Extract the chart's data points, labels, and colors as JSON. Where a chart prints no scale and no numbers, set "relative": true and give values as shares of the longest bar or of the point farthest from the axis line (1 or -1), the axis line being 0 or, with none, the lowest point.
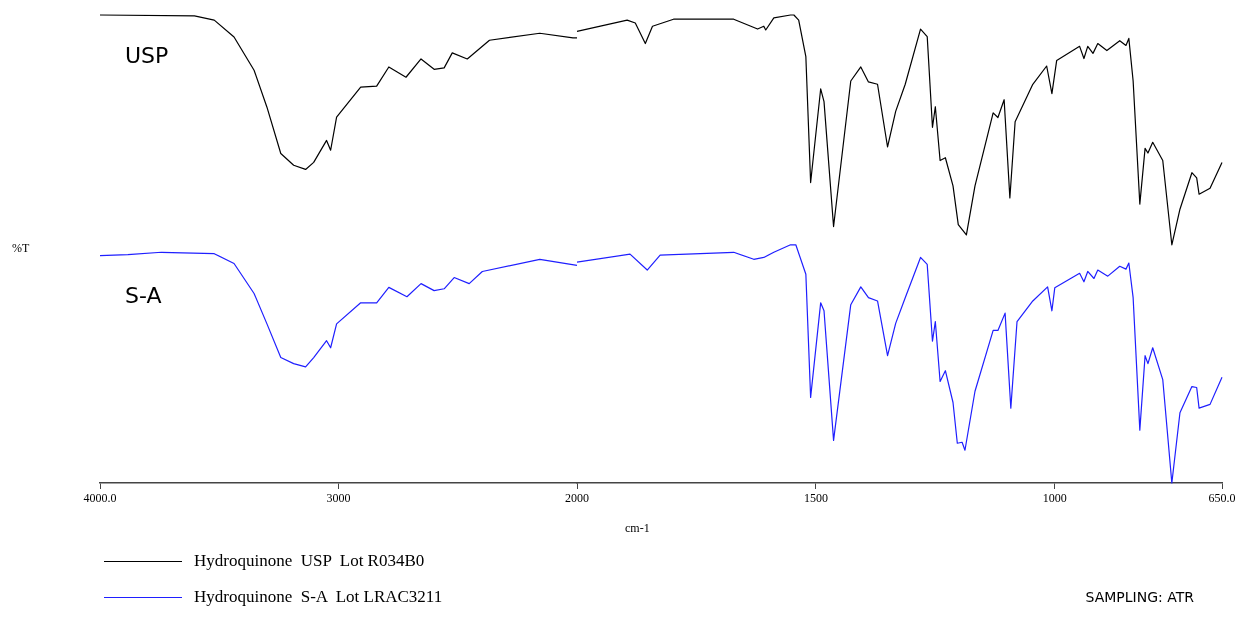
{
  "chart_data": [
    {
      "type": "line",
      "ylabel": "%T",
      "relative": true,
      "xlim": [
        4000,
        2000
      ],
      "xticks": [
        {
          "value": 4000,
          "label": "4000.0"
        },
        3000,
        2000
      ],
      "legend": "bottom left",
      "marker": "none",
      "line_style": "solid",
      "annotations": [
        "USP",
        "S-A",
        "SAMPLING: ATR"
      ],
      "series": [
        {
          "name": "Hydroquinone  USP  Lot R034B0",
          "color": "#000000",
          "x": [
            4000,
            3604,
            3521,
            3438,
            3354,
            3300,
            3242,
            3188,
            3138,
            3104,
            3050,
            3033,
            3008,
            2907,
            2840,
            2789,
            2717,
            2654,
            2599,
            2557,
            2523,
            2460,
            2367,
            2156,
            2017,
            2000
          ],
          "values": [
            1.0,
            0.998,
            0.989,
            0.953,
            0.882,
            0.803,
            0.704,
            0.679,
            0.67,
            0.685,
            0.732,
            0.711,
            0.782,
            0.846,
            0.848,
            0.889,
            0.867,
            0.906,
            0.884,
            0.887,
            0.919,
            0.906,
            0.946,
            0.961,
            0.951,
            0.951
          ]
        },
        {
          "name": "Hydroquinone  S-A  Lot LRAC3211",
          "color": "#1f1fff",
          "x": [
            4000,
            3883,
            3742,
            3521,
            3438,
            3354,
            3300,
            3242,
            3188,
            3138,
            3104,
            3050,
            3033,
            3008,
            2907,
            2840,
            2789,
            2713,
            2654,
            2599,
            2557,
            2515,
            2452,
            2397,
            2156,
            2000
          ],
          "values": [
            0.486,
            0.488,
            0.493,
            0.49,
            0.469,
            0.405,
            0.34,
            0.268,
            0.255,
            0.248,
            0.268,
            0.304,
            0.289,
            0.34,
            0.385,
            0.385,
            0.418,
            0.398,
            0.426,
            0.411,
            0.415,
            0.439,
            0.426,
            0.452,
            0.478,
            0.465
          ]
        }
      ]
    },
    {
      "type": "line",
      "xlabel": "cm-1",
      "relative": true,
      "xlim": [
        2000,
        650
      ],
      "xticks": [
        1500,
        1000,
        {
          "value": 650,
          "label": "650.0"
        }
      ],
      "marker": "none",
      "line_style": "solid",
      "series": [
        {
          "color": "#000000",
          "x": [
            2000,
            1895,
            1878,
            1857,
            1842,
            1798,
            1672,
            1622,
            1609,
            1605,
            1588,
            1553,
            1546,
            1536,
            1521,
            1511,
            1490,
            1483,
            1463,
            1427,
            1406,
            1390,
            1371,
            1350,
            1333,
            1313,
            1281,
            1267,
            1256,
            1250,
            1240,
            1229,
            1213,
            1202,
            1185,
            1167,
            1129,
            1119,
            1106,
            1094,
            1083,
            1046,
            1017,
            1006,
            996,
            948,
            939,
            931,
            920,
            910,
            891,
            864,
            851,
            845,
            836,
            822,
            811,
            805,
            795,
            774,
            755,
            738,
            713,
            703,
            698,
            675,
            650
          ],
          "values": [
            0.965,
            0.989,
            0.983,
            0.939,
            0.976,
            0.991,
            0.991,
            0.97,
            0.976,
            0.968,
            0.994,
            1.0,
            1.0,
            0.989,
            0.911,
            0.642,
            0.842,
            0.815,
            0.548,
            0.859,
            0.889,
            0.857,
            0.852,
            0.718,
            0.794,
            0.852,
            0.97,
            0.954,
            0.76,
            0.804,
            0.689,
            0.695,
            0.635,
            0.552,
            0.53,
            0.635,
            0.791,
            0.781,
            0.819,
            0.609,
            0.772,
            0.852,
            0.891,
            0.832,
            0.903,
            0.933,
            0.907,
            0.933,
            0.918,
            0.939,
            0.924,
            0.945,
            0.935,
            0.95,
            0.859,
            0.596,
            0.715,
            0.705,
            0.728,
            0.689,
            0.509,
            0.585,
            0.663,
            0.652,
            0.617,
            0.63,
            0.685
          ]
        },
        {
          "color": "#1f1fff",
          "x": [
            2000,
            1889,
            1853,
            1826,
            1672,
            1630,
            1609,
            1588,
            1553,
            1542,
            1521,
            1511,
            1490,
            1483,
            1463,
            1427,
            1406,
            1390,
            1371,
            1350,
            1333,
            1313,
            1281,
            1267,
            1256,
            1250,
            1240,
            1229,
            1213,
            1204,
            1194,
            1188,
            1167,
            1129,
            1119,
            1104,
            1092,
            1079,
            1046,
            1015,
            1006,
            1000,
            948,
            939,
            931,
            918,
            910,
            889,
            864,
            851,
            845,
            836,
            822,
            811,
            805,
            795,
            774,
            755,
            738,
            713,
            703,
            698,
            675,
            650
          ],
          "values": [
            0.472,
            0.489,
            0.455,
            0.487,
            0.493,
            0.478,
            0.482,
            0.493,
            0.509,
            0.509,
            0.446,
            0.183,
            0.385,
            0.368,
            0.091,
            0.381,
            0.419,
            0.396,
            0.389,
            0.272,
            0.341,
            0.396,
            0.482,
            0.467,
            0.303,
            0.345,
            0.217,
            0.24,
            0.172,
            0.085,
            0.087,
            0.07,
            0.196,
            0.326,
            0.326,
            0.363,
            0.16,
            0.345,
            0.389,
            0.419,
            0.368,
            0.417,
            0.448,
            0.43,
            0.452,
            0.437,
            0.455,
            0.442,
            0.463,
            0.457,
            0.47,
            0.396,
            0.113,
            0.272,
            0.255,
            0.289,
            0.221,
            0.0,
            0.15,
            0.206,
            0.204,
            0.16,
            0.168,
            0.226
          ]
        }
      ]
    }
  ]
}
